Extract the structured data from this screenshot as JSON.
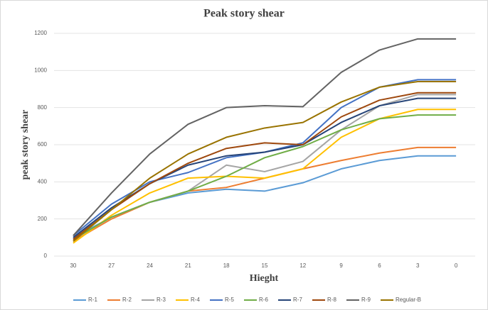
{
  "chart_data": {
    "type": "line",
    "title": "Peak story shear",
    "xlabel": "Hieght",
    "ylabel": "peak story shear",
    "categories": [
      "30",
      "27",
      "24",
      "21",
      "18",
      "15",
      "12",
      "9",
      "6",
      "3",
      "0"
    ],
    "ylim": [
      0,
      1200
    ],
    "yticks": [
      0,
      200,
      400,
      600,
      800,
      1000,
      1200
    ],
    "grid": true,
    "legend": "bottom",
    "series": [
      {
        "name": "R-1",
        "color": "#5b9bd5",
        "values": [
          100,
          210,
          290,
          340,
          360,
          350,
          395,
          470,
          515,
          540,
          540
        ]
      },
      {
        "name": "R-2",
        "color": "#ed7d31",
        "values": [
          80,
          200,
          290,
          350,
          370,
          420,
          470,
          515,
          555,
          585,
          585
        ]
      },
      {
        "name": "R-3",
        "color": "#a5a5a5",
        "values": [
          90,
          210,
          290,
          350,
          490,
          455,
          510,
          680,
          810,
          870,
          870
        ]
      },
      {
        "name": "R-4",
        "color": "#ffc000",
        "values": [
          70,
          220,
          340,
          420,
          430,
          420,
          470,
          640,
          740,
          790,
          790
        ]
      },
      {
        "name": "R-5",
        "color": "#4472c4",
        "values": [
          110,
          280,
          400,
          450,
          530,
          560,
          610,
          800,
          910,
          950,
          950
        ]
      },
      {
        "name": "R-6",
        "color": "#70ad47",
        "values": [
          90,
          210,
          290,
          350,
          430,
          530,
          590,
          680,
          740,
          760,
          760
        ]
      },
      {
        "name": "R-7",
        "color": "#264478",
        "values": [
          100,
          260,
          390,
          490,
          540,
          560,
          600,
          720,
          810,
          850,
          850
        ]
      },
      {
        "name": "R-8",
        "color": "#9e480e",
        "values": [
          90,
          250,
          390,
          500,
          580,
          610,
          600,
          750,
          840,
          880,
          880
        ]
      },
      {
        "name": "R-9",
        "color": "#636363",
        "values": [
          110,
          340,
          550,
          710,
          800,
          810,
          805,
          990,
          1110,
          1170,
          1170
        ]
      },
      {
        "name": "Regular-B",
        "color": "#997300",
        "values": [
          80,
          250,
          420,
          550,
          640,
          690,
          720,
          830,
          910,
          940,
          940
        ]
      }
    ]
  }
}
